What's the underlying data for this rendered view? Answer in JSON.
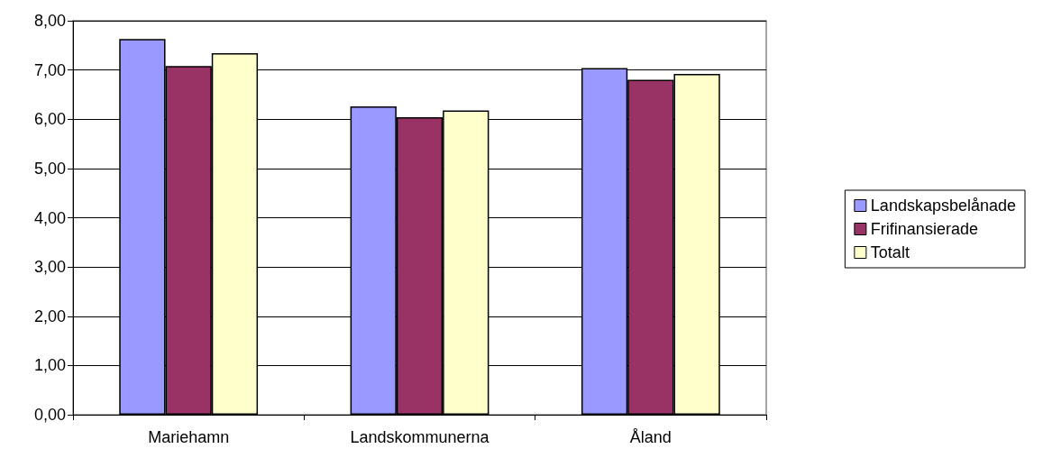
{
  "chart_data": {
    "type": "bar",
    "categories": [
      "Mariehamn",
      "Landskommunerna",
      "Åland"
    ],
    "series": [
      {
        "name": "Landskapsbelånade",
        "color": "#9999ff",
        "values": [
          7.63,
          6.26,
          7.04
        ]
      },
      {
        "name": "Frifinansierade",
        "color": "#993366",
        "values": [
          7.08,
          6.04,
          6.8
        ]
      },
      {
        "name": "Totalt",
        "color": "#ffffcc",
        "values": [
          7.34,
          6.18,
          6.92
        ]
      }
    ],
    "ylim": [
      0,
      8
    ],
    "yticks": [
      {
        "value": 0,
        "label": "0,00"
      },
      {
        "value": 1,
        "label": "1,00"
      },
      {
        "value": 2,
        "label": "2,00"
      },
      {
        "value": 3,
        "label": "3,00"
      },
      {
        "value": 4,
        "label": "4,00"
      },
      {
        "value": 5,
        "label": "5,00"
      },
      {
        "value": 6,
        "label": "6,00"
      },
      {
        "value": 7,
        "label": "7,00"
      },
      {
        "value": 8,
        "label": "8,00"
      }
    ],
    "grid": "y",
    "legend": "right"
  }
}
